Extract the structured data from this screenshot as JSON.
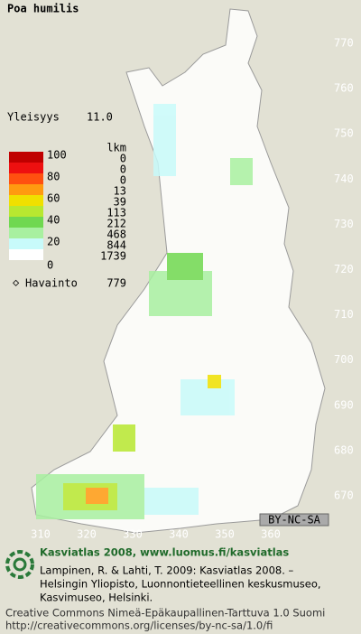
{
  "title": "Poa humilis",
  "frequency": {
    "label": "Yleisyys",
    "value": "11.0"
  },
  "legend": {
    "header": "lkm",
    "bands": [
      {
        "label": "100",
        "color": "#c00000",
        "count": 0
      },
      {
        "label": null,
        "color": "#ee1010",
        "count": 0
      },
      {
        "label": "80",
        "color": "#ff5010",
        "count": 0
      },
      {
        "label": null,
        "color": "#ff9a10",
        "count": 13
      },
      {
        "label": "60",
        "color": "#f0e000",
        "count": 39
      },
      {
        "label": null,
        "color": "#b8e830",
        "count": 113
      },
      {
        "label": "40",
        "color": "#70d850",
        "count": 212
      },
      {
        "label": null,
        "color": "#a8f0a0",
        "count": 468
      },
      {
        "label": "20",
        "color": "#c8fafa",
        "count": 844
      },
      {
        "label": "0",
        "color": "#ffffff",
        "count": 1739
      }
    ]
  },
  "observations": {
    "label": "Havainto",
    "value": "779"
  },
  "grid": {
    "northing": [
      "770",
      "760",
      "750",
      "740",
      "730",
      "720",
      "710",
      "700",
      "690",
      "680",
      "670"
    ],
    "easting": [
      "310",
      "320",
      "330",
      "340",
      "350",
      "360"
    ]
  },
  "license_badge": "BY-NC-SA",
  "footer": {
    "heading": "Kasviatlas 2008, www.luomus.fi/kasviatlas",
    "citation": [
      "Lampinen, R. & Lahti, T. 2009: Kasviatlas 2008. –",
      "Helsingin Yliopisto, Luonnontieteellinen keskusmuseo,",
      "Kasvimuseo, Helsinki."
    ],
    "license": [
      "Creative Commons Nimeä-Epäkaupallinen-Tarttuva 1.0 Suomi",
      "http://creativecommons.org/licenses/by-nc-sa/1.0/fi"
    ]
  }
}
